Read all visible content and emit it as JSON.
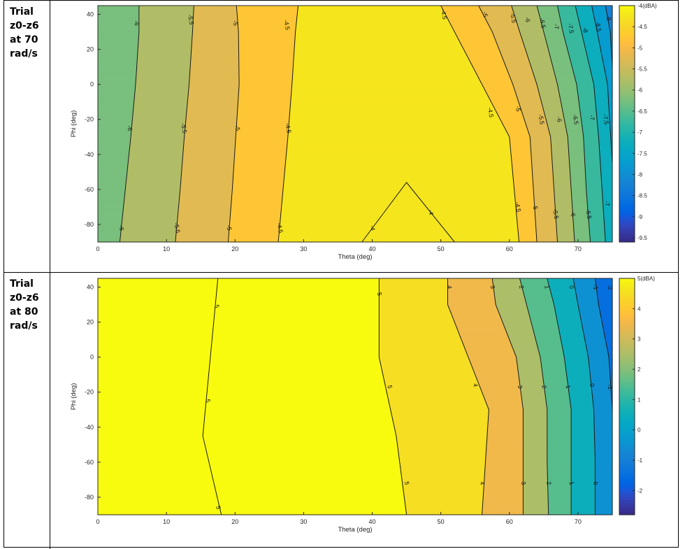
{
  "rows": [
    {
      "label_lines": [
        "Trial",
        "z0-z6",
        "at 70",
        "rad/s"
      ]
    },
    {
      "label_lines": [
        "Trial",
        "z0-z6",
        "at 80",
        "rad/s"
      ]
    }
  ],
  "chart_data": [
    {
      "type": "heatmap",
      "subtype": "filled-contour",
      "title": "",
      "xlabel": "Theta (deg)",
      "ylabel": "Phi (deg)",
      "xlim": [
        0,
        75
      ],
      "ylim": [
        -90,
        45
      ],
      "xticks": [
        0,
        10,
        20,
        30,
        40,
        50,
        60,
        70
      ],
      "yticks": [
        -80,
        -60,
        -40,
        -20,
        0,
        20,
        40
      ],
      "colorbar": {
        "unit_label": "(dBA)",
        "min": -9.6,
        "max": -4,
        "ticks": [
          -4,
          -4.5,
          -5,
          -5.5,
          -6,
          -6.5,
          -7,
          -7.5,
          -8,
          -8.5,
          -9,
          -9.5
        ]
      },
      "contour_levels": [
        -4,
        -4.5,
        -5,
        -5.5,
        -6,
        -6.5,
        -7,
        -7.5,
        -8,
        -8.5,
        -9
      ],
      "contours": [
        {
          "level": -6,
          "points": [
            [
              3.2,
              -90
            ],
            [
              4,
              -60
            ],
            [
              4.8,
              -30
            ],
            [
              5.5,
              0
            ],
            [
              6,
              30
            ],
            [
              6,
              45
            ]
          ]
        },
        {
          "level": -5.5,
          "points": [
            [
              11.3,
              -90
            ],
            [
              12,
              -60
            ],
            [
              12.6,
              -30
            ],
            [
              13.3,
              0
            ],
            [
              13.8,
              30
            ],
            [
              14,
              45
            ]
          ]
        },
        {
          "level": -5,
          "points": [
            [
              19,
              -90
            ],
            [
              19.6,
              -60
            ],
            [
              20.1,
              -30
            ],
            [
              20.6,
              0
            ],
            [
              20.5,
              30
            ],
            [
              20.2,
              45
            ]
          ]
        },
        {
          "level": -4.5,
          "points": [
            [
              26.3,
              -90
            ],
            [
              27,
              -60
            ],
            [
              27.7,
              -30
            ],
            [
              28.3,
              0
            ],
            [
              28.8,
              30
            ],
            [
              29.2,
              45
            ]
          ]
        },
        {
          "level": -4,
          "points": [
            [
              38.5,
              -90
            ],
            [
              45,
              -56
            ],
            [
              52,
              -90
            ]
          ]
        },
        {
          "level": -4.5,
          "points": [
            [
              61.4,
              -90
            ],
            [
              60.7,
              -60
            ],
            [
              60,
              -30
            ],
            [
              56,
              0
            ],
            [
              50,
              45
            ]
          ]
        },
        {
          "level": -5,
          "points": [
            [
              64,
              -90
            ],
            [
              63.5,
              -60
            ],
            [
              63,
              -30
            ],
            [
              60.5,
              0
            ],
            [
              57.5,
              30
            ],
            [
              55.5,
              45
            ]
          ]
        },
        {
          "level": -5.5,
          "points": [
            [
              67,
              -90
            ],
            [
              66.5,
              -60
            ],
            [
              66,
              -30
            ],
            [
              64,
              0
            ],
            [
              61.5,
              30
            ],
            [
              60.3,
              45
            ]
          ]
        },
        {
          "level": -6,
          "points": [
            [
              69.5,
              -90
            ],
            [
              69,
              -60
            ],
            [
              68.5,
              -30
            ],
            [
              67,
              0
            ],
            [
              65,
              30
            ],
            [
              64,
              45
            ]
          ]
        },
        {
          "level": -6.5,
          "points": [
            [
              71.8,
              -90
            ],
            [
              71.2,
              -60
            ],
            [
              70.8,
              -30
            ],
            [
              69.8,
              0
            ],
            [
              67.8,
              30
            ],
            [
              67,
              45
            ]
          ]
        },
        {
          "level": -7,
          "points": [
            [
              74,
              -90
            ],
            [
              73.5,
              -60
            ],
            [
              73,
              -30
            ],
            [
              72.3,
              0
            ],
            [
              70.5,
              30
            ],
            [
              69.6,
              45
            ]
          ]
        },
        {
          "level": -7.5,
          "points": [
            [
              75,
              -45
            ],
            [
              74.3,
              0
            ],
            [
              72.8,
              30
            ],
            [
              72,
              45
            ]
          ]
        },
        {
          "level": -8,
          "points": [
            [
              75,
              10
            ],
            [
              74.7,
              30
            ],
            [
              74,
              45
            ]
          ]
        },
        {
          "level": -8.5,
          "points": [
            [
              75,
              30
            ],
            [
              75,
              45
            ]
          ]
        },
        {
          "level": -9,
          "points": [
            [
              75,
              40
            ],
            [
              75,
              45
            ]
          ]
        }
      ],
      "contour_labels": [
        {
          "text": "-6",
          "x": 5.6,
          "y": 35
        },
        {
          "text": "-5.5",
          "x": 13.5,
          "y": 37
        },
        {
          "text": "-5",
          "x": 20,
          "y": 35
        },
        {
          "text": "-4.5",
          "x": 27.5,
          "y": 34
        },
        {
          "text": "-4.5",
          "x": 50.4,
          "y": 40
        },
        {
          "text": "-5",
          "x": 56.4,
          "y": 40
        },
        {
          "text": "-5.5",
          "x": 60.5,
          "y": 38
        },
        {
          "text": "-6",
          "x": 62.6,
          "y": 37
        },
        {
          "text": "-6.5",
          "x": 64.8,
          "y": 35
        },
        {
          "text": "-7",
          "x": 66.8,
          "y": 33
        },
        {
          "text": "-7.5",
          "x": 68.9,
          "y": 32
        },
        {
          "text": "-8",
          "x": 71,
          "y": 31
        },
        {
          "text": "-8.5",
          "x": 72.9,
          "y": 33
        },
        {
          "text": "-9",
          "x": 74.4,
          "y": 38
        },
        {
          "text": "-6",
          "x": 4.6,
          "y": -25
        },
        {
          "text": "-5.5",
          "x": 12.5,
          "y": -25
        },
        {
          "text": "-5",
          "x": 20.3,
          "y": -25
        },
        {
          "text": "-4.5",
          "x": 27.7,
          "y": -25
        },
        {
          "text": "-4.5",
          "x": 57.2,
          "y": -16
        },
        {
          "text": "-5",
          "x": 61.2,
          "y": -14
        },
        {
          "text": "-5.5",
          "x": 64.6,
          "y": -20
        },
        {
          "text": "-6",
          "x": 67.2,
          "y": -20
        },
        {
          "text": "-6.5",
          "x": 69.6,
          "y": -20
        },
        {
          "text": "-7",
          "x": 72,
          "y": -19
        },
        {
          "text": "-7.5",
          "x": 74,
          "y": -20
        },
        {
          "text": "-6",
          "x": 3.4,
          "y": -82
        },
        {
          "text": "-5.5",
          "x": 11.5,
          "y": -82
        },
        {
          "text": "-5",
          "x": 19.1,
          "y": -82
        },
        {
          "text": "-4.5",
          "x": 26.5,
          "y": -82
        },
        {
          "text": "-4",
          "x": 40,
          "y": -82
        },
        {
          "text": "-4",
          "x": 48.5,
          "y": -73
        },
        {
          "text": "-4.5",
          "x": 61.2,
          "y": -70
        },
        {
          "text": "-5",
          "x": 63.7,
          "y": -70
        },
        {
          "text": "-5.5",
          "x": 66.7,
          "y": -74
        },
        {
          "text": "-6",
          "x": 69.2,
          "y": -74
        },
        {
          "text": "-6.5",
          "x": 71.5,
          "y": -74
        },
        {
          "text": "-7",
          "x": 74.2,
          "y": -68
        }
      ]
    },
    {
      "type": "heatmap",
      "subtype": "filled-contour",
      "title": "",
      "xlabel": "Theta (deg)",
      "ylabel": "Phi (deg)",
      "xlim": [
        0,
        75
      ],
      "ylim": [
        -90,
        45
      ],
      "xticks": [
        0,
        10,
        20,
        30,
        40,
        50,
        60,
        70
      ],
      "yticks": [
        -80,
        -60,
        -40,
        -20,
        0,
        20,
        40
      ],
      "colorbar": {
        "unit_label": "(dBA)",
        "min": -2.8,
        "max": 5,
        "ticks": [
          5,
          4,
          3,
          2,
          1,
          0,
          -1,
          -2
        ]
      },
      "contour_levels": [
        5,
        4,
        3,
        2,
        1,
        0,
        -1,
        -2
      ],
      "contours": [
        {
          "level": 5,
          "points": [
            [
              18,
              -90
            ],
            [
              15.3,
              -45
            ],
            [
              17.5,
              45
            ]
          ]
        },
        {
          "level": 5,
          "points": [
            [
              45,
              -90
            ],
            [
              43.5,
              -45
            ],
            [
              41,
              0
            ],
            [
              41,
              45
            ]
          ]
        },
        {
          "level": 4,
          "points": [
            [
              56,
              -90
            ],
            [
              56.5,
              -60
            ],
            [
              57,
              -30
            ],
            [
              54,
              0
            ],
            [
              51,
              30
            ],
            [
              51,
              45
            ]
          ]
        },
        {
          "level": 3,
          "points": [
            [
              62,
              -90
            ],
            [
              62,
              -60
            ],
            [
              62,
              -30
            ],
            [
              61,
              0
            ],
            [
              58,
              30
            ],
            [
              57.5,
              45
            ]
          ]
        },
        {
          "level": 2,
          "points": [
            [
              65.7,
              -90
            ],
            [
              65.5,
              -60
            ],
            [
              65.5,
              -30
            ],
            [
              64.5,
              0
            ],
            [
              62.5,
              30
            ],
            [
              61.5,
              45
            ]
          ]
        },
        {
          "level": 1,
          "points": [
            [
              69,
              -90
            ],
            [
              69,
              -60
            ],
            [
              69,
              -30
            ],
            [
              68,
              0
            ],
            [
              66.5,
              30
            ],
            [
              65.5,
              45
            ]
          ]
        },
        {
          "level": 0,
          "points": [
            [
              72.5,
              -90
            ],
            [
              72.5,
              -60
            ],
            [
              72.3,
              -30
            ],
            [
              71.5,
              0
            ],
            [
              70,
              30
            ],
            [
              69.3,
              45
            ]
          ]
        },
        {
          "level": -1,
          "points": [
            [
              75,
              -60
            ],
            [
              75,
              -30
            ],
            [
              74.5,
              0
            ],
            [
              73,
              30
            ],
            [
              72.5,
              45
            ]
          ]
        },
        {
          "level": -2,
          "points": [
            [
              75,
              38
            ],
            [
              75,
              45
            ]
          ]
        }
      ],
      "contour_labels": [
        {
          "text": "5",
          "x": 17.3,
          "y": 29
        },
        {
          "text": "5",
          "x": 41,
          "y": 36
        },
        {
          "text": "4",
          "x": 51.2,
          "y": 40
        },
        {
          "text": "3",
          "x": 57.5,
          "y": 40
        },
        {
          "text": "2",
          "x": 61.7,
          "y": 40
        },
        {
          "text": "1",
          "x": 65.4,
          "y": 40
        },
        {
          "text": "0",
          "x": 69,
          "y": 40
        },
        {
          "text": "-1",
          "x": 72.5,
          "y": 40
        },
        {
          "text": "-2",
          "x": 74.6,
          "y": 40
        },
        {
          "text": "5",
          "x": 16,
          "y": -25
        },
        {
          "text": "5",
          "x": 42.5,
          "y": -17
        },
        {
          "text": "4",
          "x": 55,
          "y": -16
        },
        {
          "text": "3",
          "x": 61.5,
          "y": -17
        },
        {
          "text": "2",
          "x": 65,
          "y": -17
        },
        {
          "text": "1",
          "x": 68.5,
          "y": -17
        },
        {
          "text": "0",
          "x": 72,
          "y": -16
        },
        {
          "text": "-1",
          "x": 74.6,
          "y": -17
        },
        {
          "text": "5",
          "x": 17.5,
          "y": -86
        },
        {
          "text": "5",
          "x": 45,
          "y": -72
        },
        {
          "text": "4",
          "x": 56,
          "y": -72
        },
        {
          "text": "3",
          "x": 62,
          "y": -72
        },
        {
          "text": "2",
          "x": 65.7,
          "y": -72
        },
        {
          "text": "1",
          "x": 69,
          "y": -72
        },
        {
          "text": "0",
          "x": 72.5,
          "y": -72
        }
      ]
    }
  ]
}
